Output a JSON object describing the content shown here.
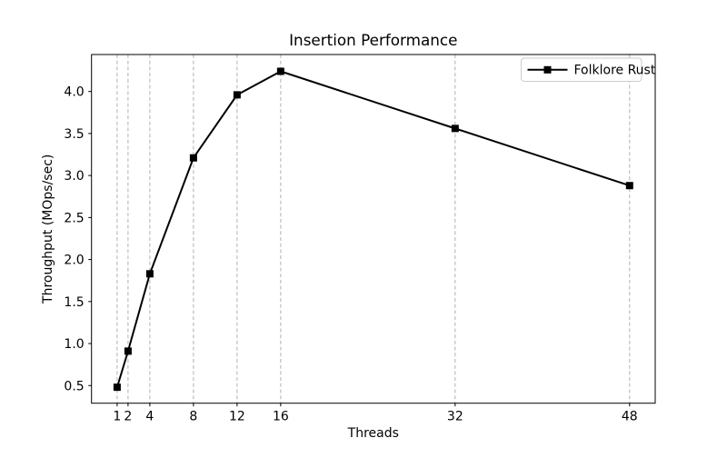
{
  "chart_data": {
    "type": "line",
    "title": "Insertion Performance",
    "xlabel": "Threads",
    "ylabel": "Throughput (MOps/sec)",
    "x": [
      1,
      2,
      4,
      8,
      12,
      16,
      32,
      48
    ],
    "series": [
      {
        "name": "Folklore Rust",
        "values": [
          0.48,
          0.91,
          1.83,
          3.21,
          3.96,
          4.24,
          3.56,
          2.88
        ],
        "color": "#000000",
        "marker": "square"
      }
    ],
    "xticks": [
      1,
      2,
      4,
      8,
      12,
      16,
      32,
      48
    ],
    "yticks": [
      0.5,
      1.0,
      1.5,
      2.0,
      2.5,
      3.0,
      3.5,
      4.0
    ],
    "xlim": [
      -1.35,
      50.35
    ],
    "ylim": [
      0.29,
      4.44
    ],
    "grid": "vertical-dashed",
    "grid_color": "#b0b0b0",
    "axis_color": "#000000",
    "background": "#ffffff",
    "legend": {
      "position": "upper-right",
      "entries": [
        "Folklore Rust"
      ]
    }
  }
}
